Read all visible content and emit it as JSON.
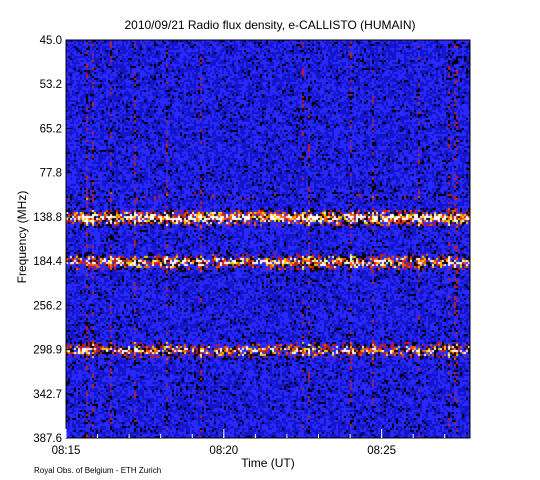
{
  "chart_data": {
    "type": "heatmap",
    "title": "2010/09/21  Radio flux density, e-CALLISTO (HUMAIN)",
    "xlabel": "Time (UT)",
    "ylabel": "Frequency (MHz)",
    "x_ticks": [
      "08:15",
      "08:20",
      "08:25"
    ],
    "x_tick_minutes": [
      0,
      5,
      10
    ],
    "x_range_minutes": [
      0,
      12.8
    ],
    "y_ticks": [
      "45.0",
      "53.2",
      "65.2",
      "77.8",
      "138.8",
      "184.4",
      "256.2",
      "298.9",
      "342.7",
      "387.6"
    ],
    "y_range_mhz": [
      45.0,
      387.6
    ],
    "colormap": [
      "#1414c8",
      "#2a2aff",
      "#000000",
      "#c81e1e",
      "#ff5a00",
      "#ffd200",
      "#ffffff"
    ],
    "features": [
      {
        "freq_mhz": 138.8,
        "intensity": 0.95
      },
      {
        "freq_mhz": 184.4,
        "intensity": 0.8
      },
      {
        "freq_mhz": 298.9,
        "intensity": 0.7
      }
    ]
  },
  "credit": "Royal Obs. of Belgium - ETH Zurich"
}
